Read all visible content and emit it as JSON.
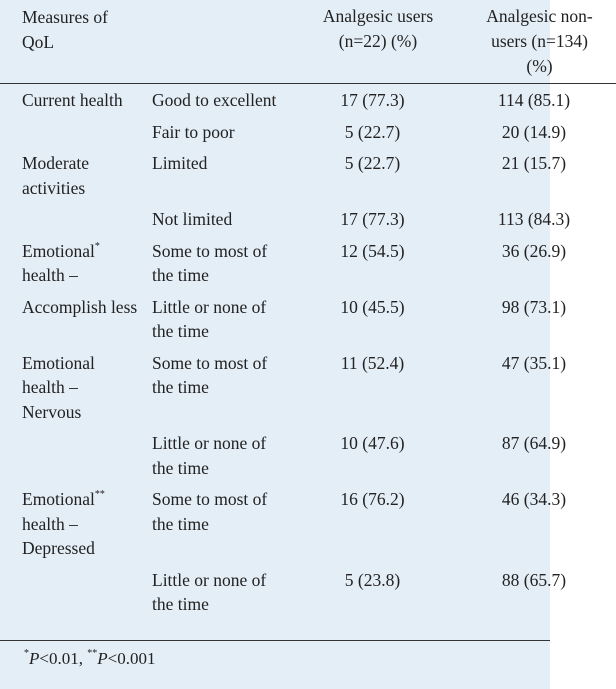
{
  "table": {
    "header": [
      "Measures of QoL",
      "Analgesic users (n=22) (%)",
      "Analgesic non-users (n=134) (%)"
    ],
    "rows": [
      {
        "measure": "Current health",
        "sub": "Good to excellent",
        "users": "17 (77.3)",
        "nonusers": "114 (85.1)"
      },
      {
        "sub": "Fair to poor",
        "users": "5 (22.7)",
        "nonusers": "20 (14.9)"
      },
      {
        "measure": "Moderate activities",
        "sub": "Limited",
        "users": "5 (22.7)",
        "nonusers": "21 (15.7)"
      },
      {
        "sub": "Not limited",
        "users": "17 (77.3)",
        "nonusers": "113 (84.3)"
      },
      {
        "measure": "Emotional",
        "measure_sup": "*",
        "measure_rest": "health –",
        "sub": "Some to most of the time",
        "users": "12 (54.5)",
        "nonusers": "36 (26.9)"
      },
      {
        "measure": "Accomplish less",
        "sub": "Little or none of the time",
        "users": "10 (45.5)",
        "nonusers": "98 (73.1)"
      },
      {
        "measure": "Emotional health – Nervous",
        "sub": "Some to most of the time",
        "users": "11 (52.4)",
        "nonusers": "47 (35.1)"
      },
      {
        "sub": "Little or none of the time",
        "users": "10 (47.6)",
        "nonusers": "87 (64.9)"
      },
      {
        "measure": "Emotional",
        "measure_sup": "**",
        "measure_rest": "health – Depressed",
        "sub": "Some to most of the time",
        "users": "16 (76.2)",
        "nonusers": "46 (34.3)"
      },
      {
        "sub": "Little or none of the time",
        "users": "5 (23.8)",
        "nonusers": "88 (65.7)"
      }
    ],
    "footnote": {
      "mark1": "*",
      "p1": "P",
      "text1": "<0.01, ",
      "mark2": "**",
      "p2": "P",
      "text2": "<0.001"
    }
  }
}
